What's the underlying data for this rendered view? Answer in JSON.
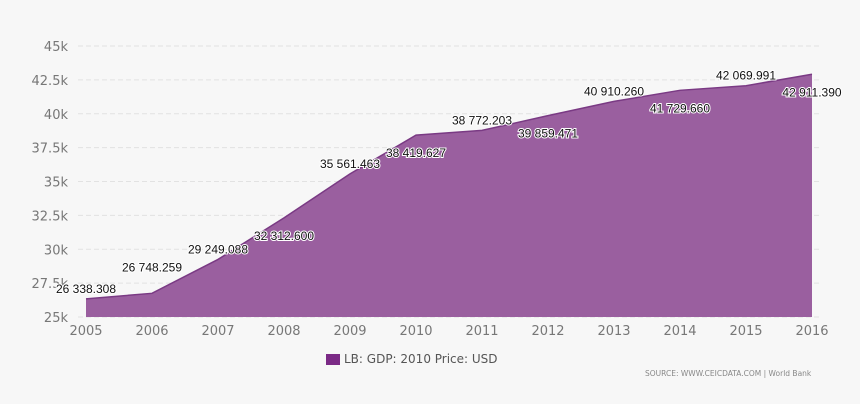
{
  "chart_data": {
    "type": "area",
    "x": [
      "2005",
      "2006",
      "2007",
      "2008",
      "2009",
      "2010",
      "2011",
      "2012",
      "2013",
      "2014",
      "2015",
      "2016"
    ],
    "series": [
      {
        "name": "LB: GDP: 2010 Price: USD",
        "values": [
          26338.308,
          26748.259,
          29249.088,
          32312.6,
          35561.463,
          38419.627,
          38772.203,
          39859.471,
          40910.26,
          41729.66,
          42069.991,
          42911.39
        ]
      }
    ],
    "data_labels": [
      "26 338.308",
      "26 748.259",
      "29 249.088",
      "32 312.600",
      "35 561.463",
      "38 419.627",
      "38 772.203",
      "39 859.471",
      "40 910.260",
      "41 729.660",
      "42 069.991",
      "42 911.390"
    ],
    "ylim": [
      25000,
      45000
    ],
    "yticks": [
      25000,
      27500,
      30000,
      32500,
      35000,
      37500,
      40000,
      42500,
      45000
    ],
    "ytick_labels": [
      "25k",
      "27.5k",
      "30k",
      "32.5k",
      "35k",
      "37.5k",
      "40k",
      "42.5k",
      "45k"
    ],
    "grid": true,
    "legend": "bottom",
    "colors": {
      "fill": "#9a5f9f",
      "line": "#7a3a84",
      "legend": "#7b2a86"
    }
  },
  "source": "SOURCE: WWW.CEICDATA.COM | World Bank"
}
